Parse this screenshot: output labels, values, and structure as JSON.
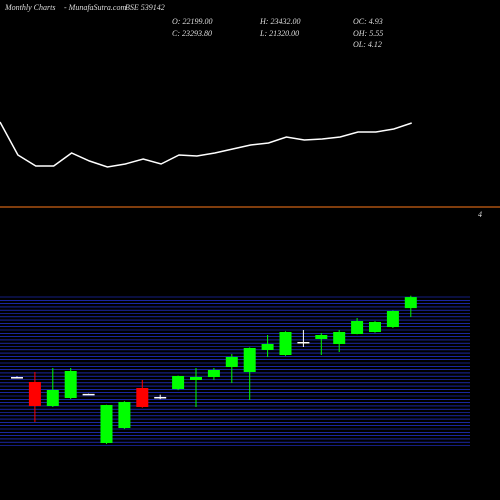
{
  "header": {
    "title": "Monthly Charts",
    "site": "- MunafaSutra.com",
    "symbol": "BSE 539142",
    "stats": [
      "O: 22199.00",
      "H: 23432.00",
      "OC: 4.93",
      "C: 23293.80",
      "L: 21320.00",
      "OH: 5.55",
      "OL: 4.12"
    ]
  },
  "chart_data": [
    {
      "type": "line",
      "color": "#ffffff",
      "annotation": "4",
      "ylim": [
        0,
        80
      ],
      "values": [
        58,
        25,
        14,
        14,
        27,
        19,
        13,
        16,
        21,
        16,
        25,
        24,
        27,
        31,
        35,
        37,
        43,
        40,
        41,
        43,
        48,
        48,
        51,
        57
      ]
    },
    {
      "type": "candlestick",
      "up_color": "#00ff00",
      "down_color": "#ff0000",
      "flat_color": "#ffffff",
      "grid_color": "#2a3cff",
      "ylim": [
        8600,
        23500
      ],
      "open": [
        15350,
        14858,
        12474,
        13269,
        13680,
        8799,
        10289,
        14262,
        13370,
        14163,
        15057,
        15355,
        16348,
        15852,
        18037,
        17540,
        18830,
        19130,
        18633,
        19626,
        19825,
        20321,
        22199
      ],
      "high": [
        15400,
        15852,
        16249,
        16249,
        13700,
        12600,
        12950,
        15057,
        13600,
        15500,
        16249,
        16250,
        17640,
        18300,
        19527,
        19900,
        20023,
        19725,
        20023,
        21215,
        20900,
        21950,
        23432
      ],
      "low": [
        15300,
        10885,
        12376,
        13170,
        13650,
        8700,
        10200,
        12300,
        13150,
        14050,
        12375,
        15050,
        14759,
        13070,
        17341,
        17450,
        18335,
        17540,
        17838,
        19600,
        19750,
        20222,
        21320
      ],
      "close": [
        15350,
        12474,
        14064,
        15951,
        13680,
        12574,
        12872,
        12375,
        13370,
        15454,
        15355,
        16050,
        17341,
        18236,
        18633,
        19825,
        18830,
        19527,
        19825,
        20917,
        20818,
        21911,
        23293.8
      ]
    }
  ]
}
